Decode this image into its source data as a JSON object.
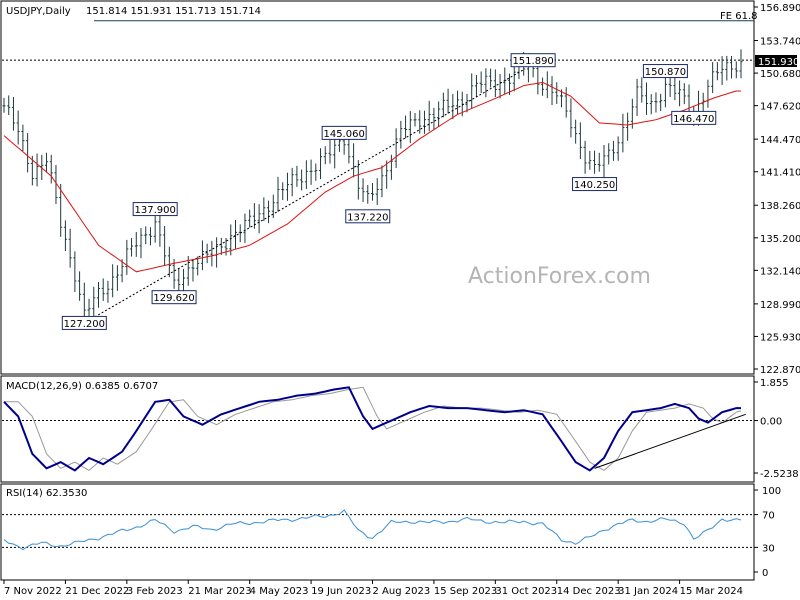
{
  "chart_data": {
    "type": "candlestick",
    "header": {
      "symbol": "USDJPY,Daily",
      "ohlc": "151.814 151.931 151.713 151.714"
    },
    "price_axis": {
      "ticks": [
        "156.890",
        "153.740",
        "150.680",
        "147.620",
        "144.470",
        "141.410",
        "138.260",
        "135.200",
        "132.140",
        "128.990",
        "125.930",
        "122.870"
      ],
      "ylim": [
        122.87,
        156.89
      ],
      "current_price_label": "151.930"
    },
    "fe_label": "FE 61.8",
    "fe_level": 155.6,
    "resistance_level": 151.9,
    "annotations": [
      {
        "text": "127.200",
        "value": 127.2,
        "i": 17
      },
      {
        "text": "137.900",
        "value": 137.9,
        "i": 32
      },
      {
        "text": "129.620",
        "value": 129.62,
        "i": 36
      },
      {
        "text": "145.060",
        "value": 145.06,
        "i": 72
      },
      {
        "text": "137.220",
        "value": 137.22,
        "i": 77
      },
      {
        "text": "151.890",
        "value": 151.89,
        "i": 112
      },
      {
        "text": "140.250",
        "value": 140.25,
        "i": 125
      },
      {
        "text": "150.870",
        "value": 150.87,
        "i": 140
      },
      {
        "text": "146.470",
        "value": 146.47,
        "i": 146
      }
    ],
    "series": [
      {
        "name": "USDJPY,Daily",
        "kind": "price_bars",
        "color": "#1f3a3a"
      },
      {
        "name": "moving average",
        "kind": "line",
        "color": "#e01010"
      }
    ],
    "price_key_closes": [
      [
        0,
        147.6
      ],
      [
        3,
        145.0
      ],
      [
        6,
        141.5
      ],
      [
        9,
        142.5
      ],
      [
        12,
        136.5
      ],
      [
        15,
        132.0
      ],
      [
        17,
        127.9
      ],
      [
        20,
        129.8
      ],
      [
        23,
        131.5
      ],
      [
        27,
        134.0
      ],
      [
        32,
        136.8
      ],
      [
        36,
        130.5
      ],
      [
        40,
        133.0
      ],
      [
        44,
        133.5
      ],
      [
        48,
        135.5
      ],
      [
        52,
        136.5
      ],
      [
        56,
        138.5
      ],
      [
        60,
        140.0
      ],
      [
        64,
        141.5
      ],
      [
        68,
        142.5
      ],
      [
        72,
        144.8
      ],
      [
        75,
        140.0
      ],
      [
        77,
        138.5
      ],
      [
        80,
        141.0
      ],
      [
        84,
        145.0
      ],
      [
        88,
        146.5
      ],
      [
        92,
        147.0
      ],
      [
        96,
        148.0
      ],
      [
        100,
        149.5
      ],
      [
        104,
        149.8
      ],
      [
        108,
        150.5
      ],
      [
        111,
        151.3
      ],
      [
        114,
        149.8
      ],
      [
        117,
        148.5
      ],
      [
        120,
        146.0
      ],
      [
        123,
        143.0
      ],
      [
        125,
        141.5
      ],
      [
        128,
        143.0
      ],
      [
        131,
        145.5
      ],
      [
        134,
        148.5
      ],
      [
        137,
        147.8
      ],
      [
        140,
        149.5
      ],
      [
        143,
        148.5
      ],
      [
        146,
        147.0
      ],
      [
        149,
        149.5
      ],
      [
        152,
        151.0
      ],
      [
        155,
        151.7
      ]
    ],
    "ma_key_values": [
      [
        0,
        144.8
      ],
      [
        10,
        141.0
      ],
      [
        20,
        134.5
      ],
      [
        28,
        132.0
      ],
      [
        36,
        132.8
      ],
      [
        44,
        133.5
      ],
      [
        52,
        134.5
      ],
      [
        60,
        136.5
      ],
      [
        68,
        139.5
      ],
      [
        74,
        141.0
      ],
      [
        80,
        141.8
      ],
      [
        88,
        144.5
      ],
      [
        96,
        146.8
      ],
      [
        104,
        148.3
      ],
      [
        110,
        149.5
      ],
      [
        114,
        149.8
      ],
      [
        120,
        148.5
      ],
      [
        126,
        146.0
      ],
      [
        132,
        145.8
      ],
      [
        138,
        146.3
      ],
      [
        144,
        147.2
      ],
      [
        150,
        148.3
      ],
      [
        155,
        149.0
      ]
    ],
    "trendlines": [
      {
        "from": {
          "i": 17,
          "value": 127.2
        },
        "to": {
          "i": 110,
          "value": 151.0
        }
      }
    ],
    "macd": {
      "label": "MACD(12,26,9) 0.6385 0.6707",
      "ticks": [
        "1.855",
        "0.00",
        "-2.5238"
      ],
      "ylim": [
        -2.5238,
        1.855
      ],
      "series": [
        {
          "name": "macd",
          "color": "#00008b"
        },
        {
          "name": "signal",
          "color": "#999999"
        }
      ],
      "key_values": [
        [
          0,
          0.9
        ],
        [
          3,
          0.2
        ],
        [
          6,
          -1.6
        ],
        [
          9,
          -2.3
        ],
        [
          12,
          -2.0
        ],
        [
          15,
          -2.4
        ],
        [
          18,
          -1.8
        ],
        [
          21,
          -2.1
        ],
        [
          25,
          -1.5
        ],
        [
          28,
          -0.5
        ],
        [
          32,
          0.9
        ],
        [
          35,
          1.0
        ],
        [
          38,
          0.2
        ],
        [
          42,
          -0.2
        ],
        [
          46,
          0.3
        ],
        [
          50,
          0.6
        ],
        [
          54,
          0.9
        ],
        [
          58,
          1.0
        ],
        [
          62,
          1.2
        ],
        [
          66,
          1.3
        ],
        [
          70,
          1.5
        ],
        [
          73,
          1.6
        ],
        [
          76,
          0.2
        ],
        [
          78,
          -0.4
        ],
        [
          82,
          0.0
        ],
        [
          86,
          0.4
        ],
        [
          90,
          0.7
        ],
        [
          94,
          0.6
        ],
        [
          98,
          0.6
        ],
        [
          102,
          0.5
        ],
        [
          106,
          0.4
        ],
        [
          110,
          0.5
        ],
        [
          114,
          0.3
        ],
        [
          118,
          -1.0
        ],
        [
          121,
          -2.0
        ],
        [
          124,
          -2.4
        ],
        [
          127,
          -1.8
        ],
        [
          130,
          -0.5
        ],
        [
          133,
          0.4
        ],
        [
          136,
          0.5
        ],
        [
          139,
          0.6
        ],
        [
          142,
          0.8
        ],
        [
          145,
          0.6
        ],
        [
          147,
          0.1
        ],
        [
          149,
          -0.1
        ],
        [
          152,
          0.4
        ],
        [
          155,
          0.6
        ]
      ],
      "trendline": {
        "from": {
          "i": 125,
          "value": -2.3
        },
        "to": {
          "i": 157,
          "value": 0.3
        }
      }
    },
    "rsi": {
      "label": "RSI(14) 62.3530",
      "ticks": [
        "100",
        "70",
        "30",
        "0"
      ],
      "levels": [
        70,
        30
      ],
      "ylim": [
        0,
        100
      ],
      "color": "#3a8fd8",
      "key_values": [
        [
          0,
          38
        ],
        [
          4,
          30
        ],
        [
          8,
          35
        ],
        [
          12,
          32
        ],
        [
          16,
          36
        ],
        [
          20,
          42
        ],
        [
          24,
          48
        ],
        [
          28,
          55
        ],
        [
          32,
          63
        ],
        [
          36,
          50
        ],
        [
          40,
          55
        ],
        [
          44,
          52
        ],
        [
          48,
          58
        ],
        [
          52,
          60
        ],
        [
          56,
          62
        ],
        [
          60,
          64
        ],
        [
          64,
          66
        ],
        [
          68,
          68
        ],
        [
          72,
          74
        ],
        [
          75,
          50
        ],
        [
          78,
          42
        ],
        [
          82,
          60
        ],
        [
          86,
          62
        ],
        [
          90,
          60
        ],
        [
          94,
          62
        ],
        [
          98,
          64
        ],
        [
          102,
          62
        ],
        [
          106,
          60
        ],
        [
          110,
          62
        ],
        [
          114,
          58
        ],
        [
          118,
          40
        ],
        [
          121,
          35
        ],
        [
          124,
          42
        ],
        [
          127,
          52
        ],
        [
          130,
          58
        ],
        [
          133,
          63
        ],
        [
          136,
          62
        ],
        [
          140,
          64
        ],
        [
          144,
          60
        ],
        [
          146,
          40
        ],
        [
          149,
          50
        ],
        [
          152,
          65
        ],
        [
          155,
          63
        ]
      ]
    },
    "x_axis": {
      "n_bars": 157,
      "labels": [
        {
          "text": "7 Nov 2022",
          "i": 0
        },
        {
          "text": "21 Dec 2022",
          "i": 13
        },
        {
          "text": "3 Feb 2023",
          "i": 26
        },
        {
          "text": "21 Mar 2023",
          "i": 39
        },
        {
          "text": "4 May 2023",
          "i": 52
        },
        {
          "text": "19 Jun 2023",
          "i": 65
        },
        {
          "text": "2 Aug 2023",
          "i": 78
        },
        {
          "text": "15 Sep 2023",
          "i": 91
        },
        {
          "text": "31 Oct 2023",
          "i": 104
        },
        {
          "text": "14 Dec 2023",
          "i": 117
        },
        {
          "text": "31 Jan 2024",
          "i": 130
        },
        {
          "text": "15 Mar 2024",
          "i": 143
        }
      ]
    }
  },
  "watermark": "ActionForex.com",
  "colors": {
    "price_bars": "#1f3a3a",
    "moving_average": "#e01010",
    "macd": "#00008b",
    "signal": "#999999",
    "rsi": "#3a8fd8",
    "trendline": "#000000",
    "fe_line": "#1a3a5a",
    "watermark": "#b4b4b4"
  }
}
